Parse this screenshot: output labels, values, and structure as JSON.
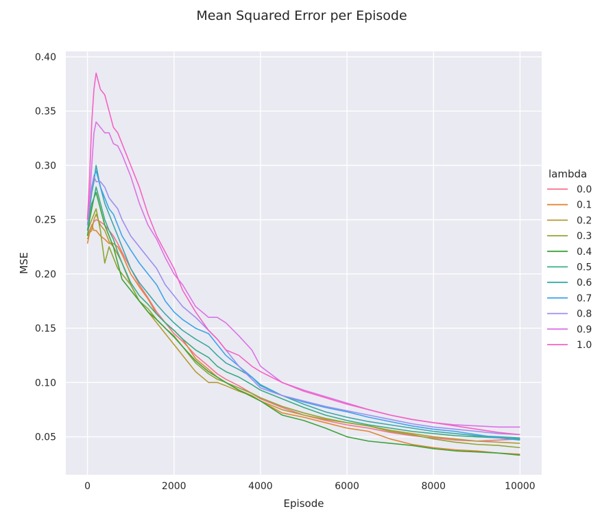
{
  "chart_data": {
    "type": "line",
    "title": "Mean Squared Error per Episode",
    "xlabel": "Episode",
    "ylabel": "MSE",
    "xlim": [
      -500,
      10500
    ],
    "ylim": [
      0.015,
      0.405
    ],
    "xticks": [
      0,
      2000,
      4000,
      6000,
      8000,
      10000
    ],
    "yticks": [
      0.05,
      0.1,
      0.15,
      0.2,
      0.25,
      0.3,
      0.35,
      0.4
    ],
    "xtick_labels": [
      "0",
      "2000",
      "4000",
      "6000",
      "8000",
      "10000"
    ],
    "ytick_labels": [
      "0.05",
      "0.10",
      "0.15",
      "0.20",
      "0.25",
      "0.30",
      "0.35",
      "0.40"
    ],
    "grid": true,
    "legend": {
      "title": "lambda",
      "placement": "right"
    },
    "x": [
      0,
      50,
      100,
      150,
      200,
      300,
      400,
      500,
      600,
      700,
      800,
      1000,
      1200,
      1400,
      1600,
      1800,
      2000,
      2200,
      2500,
      2800,
      3000,
      3200,
      3500,
      3800,
      4000,
      4500,
      5000,
      5500,
      6000,
      6500,
      7000,
      7500,
      8000,
      8500,
      9000,
      9500,
      10000
    ],
    "series": [
      {
        "name": "0.0",
        "color": "#f77189",
        "values": [
          0.235,
          0.24,
          0.245,
          0.248,
          0.25,
          0.248,
          0.245,
          0.24,
          0.235,
          0.228,
          0.22,
          0.205,
          0.19,
          0.178,
          0.165,
          0.155,
          0.145,
          0.138,
          0.125,
          0.115,
          0.108,
          0.103,
          0.097,
          0.09,
          0.085,
          0.077,
          0.07,
          0.065,
          0.061,
          0.058,
          0.054,
          0.051,
          0.049,
          0.047,
          0.046,
          0.047,
          0.048
        ]
      },
      {
        "name": "0.1",
        "color": "#e18632",
        "values": [
          0.228,
          0.238,
          0.245,
          0.24,
          0.24,
          0.235,
          0.232,
          0.228,
          0.228,
          0.225,
          0.218,
          0.2,
          0.188,
          0.177,
          0.163,
          0.155,
          0.148,
          0.14,
          0.122,
          0.112,
          0.105,
          0.1,
          0.093,
          0.088,
          0.083,
          0.072,
          0.068,
          0.063,
          0.058,
          0.055,
          0.048,
          0.043,
          0.04,
          0.038,
          0.037,
          0.035,
          0.034
        ]
      },
      {
        "name": "0.2",
        "color": "#b49a31",
        "values": [
          0.232,
          0.238,
          0.24,
          0.25,
          0.255,
          0.245,
          0.24,
          0.23,
          0.225,
          0.218,
          0.21,
          0.19,
          0.175,
          0.165,
          0.155,
          0.145,
          0.135,
          0.125,
          0.11,
          0.1,
          0.1,
          0.097,
          0.092,
          0.088,
          0.083,
          0.075,
          0.07,
          0.066,
          0.063,
          0.06,
          0.056,
          0.053,
          0.05,
          0.048,
          0.046,
          0.045,
          0.044
        ]
      },
      {
        "name": "0.3",
        "color": "#8ea531",
        "values": [
          0.24,
          0.245,
          0.25,
          0.255,
          0.26,
          0.24,
          0.21,
          0.225,
          0.215,
          0.205,
          0.2,
          0.19,
          0.175,
          0.168,
          0.158,
          0.15,
          0.143,
          0.133,
          0.118,
          0.108,
          0.103,
          0.1,
          0.095,
          0.09,
          0.086,
          0.078,
          0.072,
          0.067,
          0.063,
          0.06,
          0.055,
          0.052,
          0.048,
          0.045,
          0.043,
          0.042,
          0.04
        ]
      },
      {
        "name": "0.4",
        "color": "#3ba338",
        "values": [
          0.235,
          0.25,
          0.26,
          0.27,
          0.275,
          0.26,
          0.245,
          0.235,
          0.225,
          0.21,
          0.195,
          0.185,
          0.175,
          0.165,
          0.158,
          0.15,
          0.142,
          0.133,
          0.12,
          0.11,
          0.105,
          0.1,
          0.093,
          0.087,
          0.083,
          0.07,
          0.065,
          0.058,
          0.05,
          0.046,
          0.044,
          0.042,
          0.039,
          0.037,
          0.036,
          0.035,
          0.033
        ]
      },
      {
        "name": "0.5",
        "color": "#37ab85",
        "values": [
          0.24,
          0.255,
          0.265,
          0.27,
          0.28,
          0.265,
          0.25,
          0.24,
          0.232,
          0.22,
          0.21,
          0.192,
          0.18,
          0.172,
          0.163,
          0.155,
          0.148,
          0.14,
          0.13,
          0.123,
          0.115,
          0.11,
          0.105,
          0.098,
          0.093,
          0.085,
          0.077,
          0.07,
          0.065,
          0.061,
          0.058,
          0.055,
          0.053,
          0.051,
          0.05,
          0.049,
          0.048
        ]
      },
      {
        "name": "0.6",
        "color": "#39a8a4",
        "values": [
          0.245,
          0.26,
          0.275,
          0.285,
          0.3,
          0.28,
          0.265,
          0.255,
          0.245,
          0.235,
          0.225,
          0.205,
          0.192,
          0.182,
          0.172,
          0.163,
          0.155,
          0.148,
          0.14,
          0.133,
          0.125,
          0.118,
          0.112,
          0.105,
          0.098,
          0.088,
          0.08,
          0.073,
          0.068,
          0.064,
          0.061,
          0.058,
          0.055,
          0.053,
          0.051,
          0.05,
          0.049
        ]
      },
      {
        "name": "0.7",
        "color": "#3ba3ec",
        "values": [
          0.25,
          0.265,
          0.28,
          0.29,
          0.295,
          0.28,
          0.27,
          0.26,
          0.255,
          0.245,
          0.235,
          0.222,
          0.21,
          0.2,
          0.19,
          0.175,
          0.165,
          0.158,
          0.15,
          0.145,
          0.135,
          0.125,
          0.115,
          0.105,
          0.097,
          0.088,
          0.082,
          0.077,
          0.073,
          0.068,
          0.064,
          0.06,
          0.057,
          0.055,
          0.052,
          0.049,
          0.047
        ]
      },
      {
        "name": "0.8",
        "color": "#9b8ef0",
        "values": [
          0.245,
          0.265,
          0.28,
          0.29,
          0.285,
          0.285,
          0.28,
          0.27,
          0.265,
          0.26,
          0.25,
          0.235,
          0.225,
          0.215,
          0.205,
          0.19,
          0.18,
          0.17,
          0.16,
          0.148,
          0.14,
          0.13,
          0.115,
          0.103,
          0.095,
          0.088,
          0.083,
          0.078,
          0.074,
          0.07,
          0.066,
          0.062,
          0.059,
          0.057,
          0.055,
          0.053,
          0.052
        ]
      },
      {
        "name": "0.9",
        "color": "#dc71e5",
        "values": [
          0.25,
          0.27,
          0.3,
          0.33,
          0.34,
          0.335,
          0.33,
          0.33,
          0.32,
          0.318,
          0.31,
          0.29,
          0.265,
          0.245,
          0.232,
          0.215,
          0.2,
          0.19,
          0.17,
          0.16,
          0.16,
          0.155,
          0.143,
          0.13,
          0.115,
          0.1,
          0.093,
          0.087,
          0.081,
          0.075,
          0.07,
          0.066,
          0.063,
          0.061,
          0.06,
          0.059,
          0.059
        ]
      },
      {
        "name": "1.0",
        "color": "#f561c5",
        "values": [
          0.25,
          0.29,
          0.34,
          0.37,
          0.385,
          0.37,
          0.365,
          0.35,
          0.335,
          0.33,
          0.32,
          0.3,
          0.28,
          0.255,
          0.235,
          0.22,
          0.205,
          0.185,
          0.165,
          0.148,
          0.14,
          0.13,
          0.125,
          0.115,
          0.11,
          0.1,
          0.092,
          0.086,
          0.08,
          0.075,
          0.07,
          0.066,
          0.063,
          0.06,
          0.057,
          0.054,
          0.052
        ]
      }
    ]
  }
}
